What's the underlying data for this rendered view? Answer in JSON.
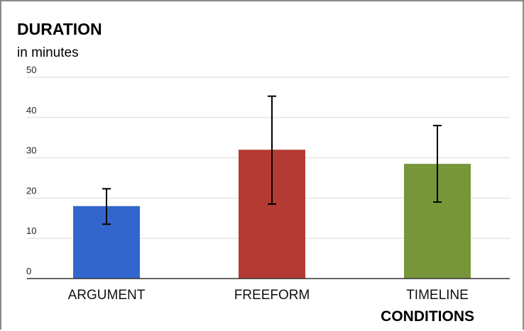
{
  "chart_data": {
    "type": "bar",
    "title": "DURATION",
    "subtitle": "in minutes",
    "xlabel": "CONDITIONS",
    "ylabel": "",
    "categories": [
      "ARGUMENT",
      "FREEFORM",
      "TIMELINE"
    ],
    "values": [
      18,
      32,
      28.5
    ],
    "error_low": [
      13.5,
      18.5,
      19
    ],
    "error_high": [
      22.3,
      45.3,
      38
    ],
    "colors": [
      "#3366cc",
      "#b33b33",
      "#77963a"
    ],
    "ylim": [
      0,
      50
    ],
    "yticks": [
      "0",
      "10",
      "20",
      "30",
      "40",
      "50"
    ],
    "grid": true,
    "legend": "none"
  }
}
